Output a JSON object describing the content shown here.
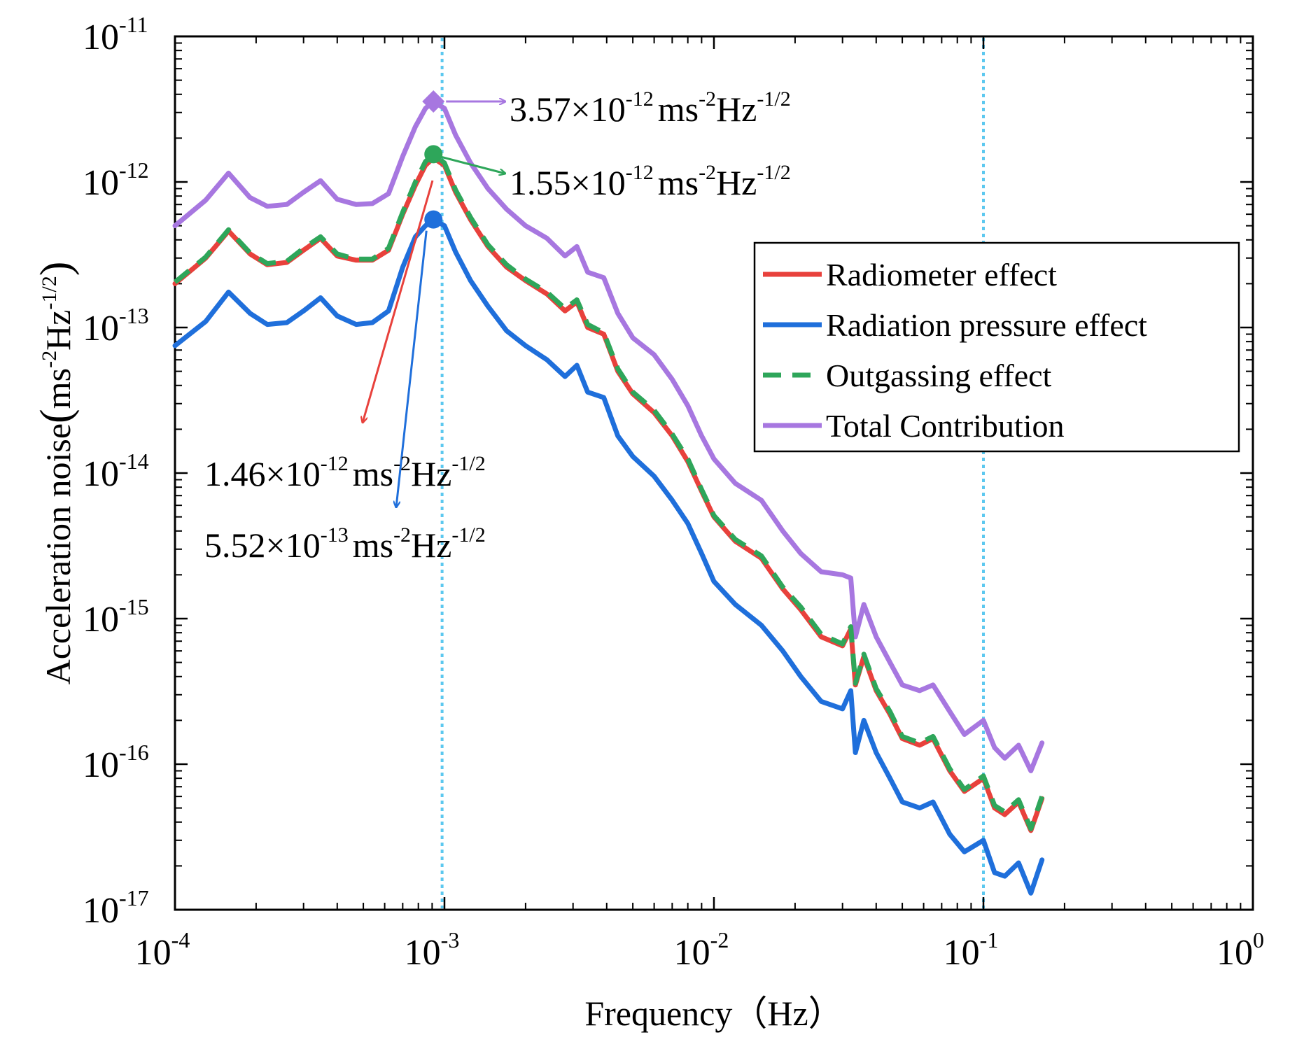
{
  "chart_data": {
    "type": "line",
    "xscale": "log",
    "yscale": "log",
    "xlabel": "Frequency（Hz）",
    "ylabel": "Acceleration noise（ms⁻²Hz⁻¹ᐟ²）",
    "xlabel_parts": {
      "text": "Frequency",
      "unit": "（Hz）"
    },
    "ylabel_parts": {
      "text": "Acceleration noise",
      "open": "(",
      "base1": "ms",
      "exp1": "-2",
      "base2": "Hz",
      "exp2": "-1/2",
      "close": ")"
    },
    "xlim": [
      0.0001,
      1
    ],
    "ylim": [
      1e-17,
      1e-11
    ],
    "xticks": [
      {
        "base": "10",
        "exp": "-4"
      },
      {
        "base": "10",
        "exp": "-3"
      },
      {
        "base": "10",
        "exp": "-2"
      },
      {
        "base": "10",
        "exp": "-1"
      },
      {
        "base": "10",
        "exp": "0"
      }
    ],
    "yticks": [
      {
        "base": "10",
        "exp": "-17"
      },
      {
        "base": "10",
        "exp": "-16"
      },
      {
        "base": "10",
        "exp": "-15"
      },
      {
        "base": "10",
        "exp": "-14"
      },
      {
        "base": "10",
        "exp": "-13"
      },
      {
        "base": "10",
        "exp": "-12"
      },
      {
        "base": "10",
        "exp": "-11"
      }
    ],
    "reference_lines_x": [
      0.00098,
      0.1
    ],
    "series": [
      {
        "name": "Radiometer effect",
        "color": "#e8413c",
        "style": "solid",
        "x": [
          0.0001,
          0.00013,
          0.000158,
          0.00019,
          0.00022,
          0.00026,
          0.0003,
          0.000347,
          0.0004,
          0.00047,
          0.00054,
          0.00062,
          0.0007,
          0.00078,
          0.00085,
          0.00091,
          0.001,
          0.0011,
          0.00125,
          0.00145,
          0.0017,
          0.002,
          0.0024,
          0.0028,
          0.0031,
          0.0034,
          0.0039,
          0.0044,
          0.005,
          0.006,
          0.007,
          0.008,
          0.009,
          0.01,
          0.012,
          0.015,
          0.018,
          0.021,
          0.025,
          0.03,
          0.0322,
          0.0335,
          0.036,
          0.04,
          0.045,
          0.05,
          0.058,
          0.065,
          0.075,
          0.085,
          0.1,
          0.11,
          0.12,
          0.135,
          0.15,
          0.165
        ],
        "y": [
          2e-13,
          3e-13,
          4.6e-13,
          3.2e-13,
          2.7e-13,
          2.8e-13,
          3.4e-13,
          4.1e-13,
          3.1e-13,
          2.9e-13,
          2.9e-13,
          3.4e-13,
          6e-13,
          9.5e-13,
          1.3e-12,
          1.46e-12,
          1.3e-12,
          8.5e-13,
          5.5e-13,
          3.6e-13,
          2.6e-13,
          2.1e-13,
          1.7e-13,
          1.3e-13,
          1.5e-13,
          1e-13,
          9e-14,
          5e-14,
          3.5e-14,
          2.6e-14,
          1.8e-14,
          1.2e-14,
          7.5e-15,
          5e-15,
          3.4e-15,
          2.6e-15,
          1.6e-15,
          1.15e-15,
          7.5e-16,
          6.5e-16,
          8.5e-16,
          3.5e-16,
          5.5e-16,
          3.2e-16,
          2.2e-16,
          1.5e-16,
          1.35e-16,
          1.5e-16,
          9e-17,
          6.5e-17,
          8e-17,
          5e-17,
          4.5e-17,
          5.5e-17,
          3.5e-17,
          5.8e-17
        ]
      },
      {
        "name": "Radiation pressure effect",
        "color": "#1f6fdb",
        "style": "solid",
        "x": [
          0.0001,
          0.00013,
          0.000158,
          0.00019,
          0.00022,
          0.00026,
          0.0003,
          0.000347,
          0.0004,
          0.00047,
          0.00054,
          0.00062,
          0.0007,
          0.00078,
          0.00085,
          0.00091,
          0.001,
          0.0011,
          0.00125,
          0.00145,
          0.0017,
          0.002,
          0.0024,
          0.0028,
          0.0031,
          0.0034,
          0.0039,
          0.0044,
          0.005,
          0.006,
          0.007,
          0.008,
          0.009,
          0.01,
          0.012,
          0.015,
          0.018,
          0.021,
          0.025,
          0.03,
          0.0322,
          0.0335,
          0.036,
          0.04,
          0.045,
          0.05,
          0.058,
          0.065,
          0.075,
          0.085,
          0.1,
          0.11,
          0.12,
          0.135,
          0.15,
          0.165
        ],
        "y": [
          7.5e-14,
          1.1e-13,
          1.75e-13,
          1.25e-13,
          1.05e-13,
          1.08e-13,
          1.3e-13,
          1.6e-13,
          1.2e-13,
          1.05e-13,
          1.08e-13,
          1.3e-13,
          2.6e-13,
          4.2e-13,
          5e-13,
          5.52e-13,
          5e-13,
          3.3e-13,
          2.1e-13,
          1.4e-13,
          9.5e-14,
          7.5e-14,
          6e-14,
          4.6e-14,
          5.5e-14,
          3.6e-14,
          3.3e-14,
          1.8e-14,
          1.3e-14,
          9.5e-15,
          6.5e-15,
          4.5e-15,
          2.8e-15,
          1.8e-15,
          1.25e-15,
          9e-16,
          6e-16,
          4e-16,
          2.7e-16,
          2.4e-16,
          3.2e-16,
          1.2e-16,
          2e-16,
          1.2e-16,
          8e-17,
          5.5e-17,
          5e-17,
          5.5e-17,
          3.3e-17,
          2.5e-17,
          3e-17,
          1.8e-17,
          1.7e-17,
          2.1e-17,
          1.3e-17,
          2.2e-17
        ]
      },
      {
        "name": "Outgassing effect",
        "color": "#2ea65a",
        "style": "dashed",
        "x": [
          0.0001,
          0.00013,
          0.000158,
          0.00019,
          0.00022,
          0.00026,
          0.0003,
          0.000347,
          0.0004,
          0.00047,
          0.00054,
          0.00062,
          0.0007,
          0.00078,
          0.00085,
          0.00091,
          0.001,
          0.0011,
          0.00125,
          0.00145,
          0.0017,
          0.002,
          0.0024,
          0.0028,
          0.0031,
          0.0034,
          0.0039,
          0.0044,
          0.005,
          0.006,
          0.007,
          0.008,
          0.009,
          0.01,
          0.012,
          0.015,
          0.018,
          0.021,
          0.025,
          0.03,
          0.0322,
          0.0335,
          0.036,
          0.04,
          0.045,
          0.05,
          0.058,
          0.065,
          0.075,
          0.085,
          0.1,
          0.11,
          0.12,
          0.135,
          0.15,
          0.165
        ],
        "y": [
          2.05e-13,
          3.05e-13,
          4.7e-13,
          3.25e-13,
          2.75e-13,
          2.85e-13,
          3.5e-13,
          4.2e-13,
          3.2e-13,
          2.95e-13,
          2.95e-13,
          3.5e-13,
          6.2e-13,
          1e-12,
          1.38e-12,
          1.55e-12,
          1.35e-12,
          8.8e-13,
          5.7e-13,
          3.7e-13,
          2.7e-13,
          2.15e-13,
          1.75e-13,
          1.35e-13,
          1.55e-13,
          1.05e-13,
          9.2e-14,
          5.2e-14,
          3.6e-14,
          2.7e-14,
          1.85e-14,
          1.25e-14,
          7.7e-15,
          5.1e-15,
          3.5e-15,
          2.7e-15,
          1.65e-15,
          1.2e-15,
          7.8e-16,
          6.7e-16,
          8.8e-16,
          3.6e-16,
          5.7e-16,
          3.3e-16,
          2.3e-16,
          1.55e-16,
          1.4e-16,
          1.55e-16,
          9.3e-17,
          6.7e-17,
          8.3e-17,
          5.2e-17,
          4.7e-17,
          5.7e-17,
          3.6e-17,
          6e-17
        ]
      },
      {
        "name": "Total Contribution",
        "color": "#a777e0",
        "style": "solid",
        "x": [
          0.0001,
          0.00013,
          0.000158,
          0.00019,
          0.00022,
          0.00026,
          0.0003,
          0.000347,
          0.0004,
          0.00047,
          0.00054,
          0.00062,
          0.0007,
          0.00078,
          0.00085,
          0.00091,
          0.001,
          0.0011,
          0.00125,
          0.00145,
          0.0017,
          0.002,
          0.0024,
          0.0028,
          0.0031,
          0.0034,
          0.0039,
          0.0044,
          0.005,
          0.006,
          0.007,
          0.008,
          0.009,
          0.01,
          0.012,
          0.015,
          0.018,
          0.021,
          0.025,
          0.03,
          0.0322,
          0.0335,
          0.036,
          0.04,
          0.045,
          0.05,
          0.058,
          0.065,
          0.075,
          0.085,
          0.1,
          0.11,
          0.12,
          0.135,
          0.15,
          0.165
        ],
        "y": [
          5e-13,
          7.5e-13,
          1.15e-12,
          7.8e-13,
          6.8e-13,
          7e-13,
          8.5e-13,
          1.02e-12,
          7.6e-13,
          7e-13,
          7.1e-13,
          8.3e-13,
          1.5e-12,
          2.4e-12,
          3.2e-12,
          3.57e-12,
          3.2e-12,
          2.1e-12,
          1.35e-12,
          9e-13,
          6.5e-13,
          5e-13,
          4.1e-13,
          3.1e-13,
          3.6e-13,
          2.4e-13,
          2.2e-13,
          1.25e-13,
          8.5e-14,
          6.5e-14,
          4.4e-14,
          2.9e-14,
          1.8e-14,
          1.25e-14,
          8.5e-15,
          6.5e-15,
          4e-15,
          2.8e-15,
          2.1e-15,
          2e-15,
          1.9e-15,
          7.5e-16,
          1.25e-15,
          7.5e-16,
          5e-16,
          3.5e-16,
          3.2e-16,
          3.5e-16,
          2.3e-16,
          1.6e-16,
          2e-16,
          1.3e-16,
          1.1e-16,
          1.35e-16,
          9e-17,
          1.4e-16
        ]
      }
    ],
    "peak_markers": [
      {
        "series": "Total Contribution",
        "x": 0.00091,
        "y": 3.57e-12,
        "marker": "diamond",
        "color": "#a777e0"
      },
      {
        "series": "Outgassing effect",
        "x": 0.00091,
        "y": 1.55e-12,
        "marker": "circle",
        "color": "#2ea65a"
      },
      {
        "series": "Radiation pressure effect",
        "x": 0.00091,
        "y": 5.52e-13,
        "marker": "circle",
        "color": "#1f6fdb"
      }
    ],
    "annotations": [
      {
        "mantissa": "3.57",
        "times": "×",
        "base": "10",
        "exp": "-12",
        "unit1": "ms",
        "uexp1": "-2",
        "unit2": "Hz",
        "uexp2": "-1/2",
        "color": "#a777e0"
      },
      {
        "mantissa": "1.55",
        "times": "×",
        "base": "10",
        "exp": "-12",
        "unit1": "ms",
        "uexp1": "-2",
        "unit2": "Hz",
        "uexp2": "-1/2",
        "color": "#2ea65a"
      },
      {
        "mantissa": "1.46",
        "times": "×",
        "base": "10",
        "exp": "-12",
        "unit1": "ms",
        "uexp1": "-2",
        "unit2": "Hz",
        "uexp2": "-1/2",
        "color": "#e8413c"
      },
      {
        "mantissa": "5.52",
        "times": "×",
        "base": "10",
        "exp": "-13",
        "unit1": "ms",
        "uexp1": "-2",
        "unit2": "Hz",
        "uexp2": "-1/2",
        "color": "#1f6fdb"
      }
    ],
    "legend": {
      "position": "right",
      "entries": [
        "Radiometer effect",
        "Radiation pressure effect",
        "Outgassing effect",
        "Total Contribution"
      ]
    },
    "reference_line_color": "#5cc8ef"
  }
}
